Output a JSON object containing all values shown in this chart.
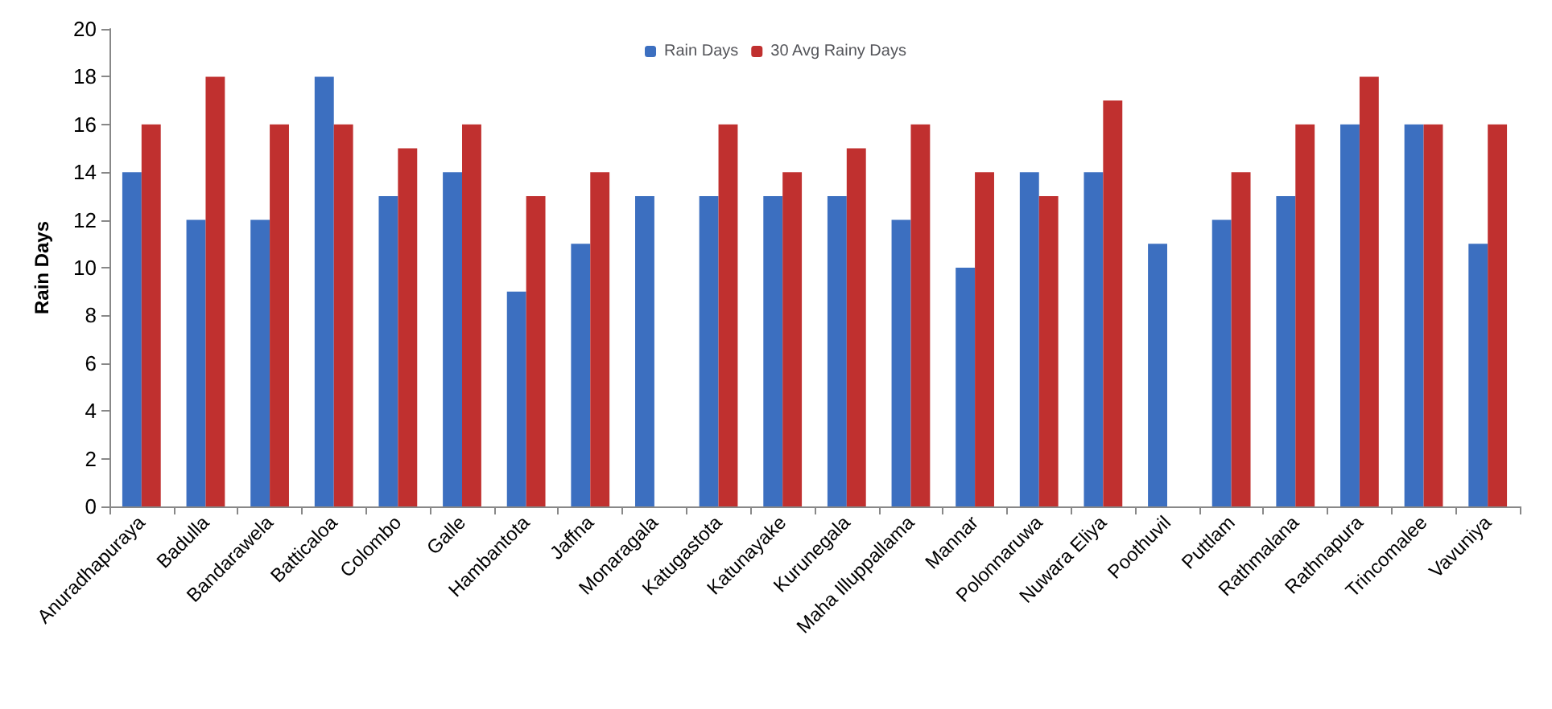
{
  "chart_data": {
    "type": "bar",
    "ylabel": "Rain Days",
    "categories": [
      "Anuradhapuraya",
      "Badulla",
      "Bandarawela",
      "Batticaloa",
      "Colombo",
      "Galle",
      "Hambantota",
      "Jaffna",
      "Monaragala",
      "Katugastota",
      "Katunayake",
      "Kurunegala",
      "Maha Illuppallama",
      "Mannar",
      "Polonnaruwa",
      "Nuwara Eliya",
      "Poothuvil",
      "Puttlam",
      "Rathmalana",
      "Rathnapura",
      "Trincomalee",
      "Vavuniya"
    ],
    "series": [
      {
        "name": "Rain Days",
        "color": "#3c6fc0",
        "values": [
          14,
          12,
          12,
          18,
          13,
          14,
          9,
          11,
          13,
          13,
          13,
          13,
          12,
          10,
          14,
          14,
          11,
          12,
          13,
          16,
          16,
          11
        ]
      },
      {
        "name": "30 Avg Rainy Days",
        "color": "#c0302f",
        "values": [
          16,
          18,
          16,
          16,
          15,
          16,
          13,
          14,
          null,
          16,
          14,
          15,
          16,
          14,
          13,
          17,
          null,
          14,
          16,
          18,
          16,
          16
        ]
      }
    ],
    "ylim": [
      0,
      20
    ],
    "yticks": [
      0,
      2,
      4,
      6,
      8,
      10,
      12,
      14,
      16,
      18,
      20
    ],
    "grid": false,
    "legend": "top"
  }
}
